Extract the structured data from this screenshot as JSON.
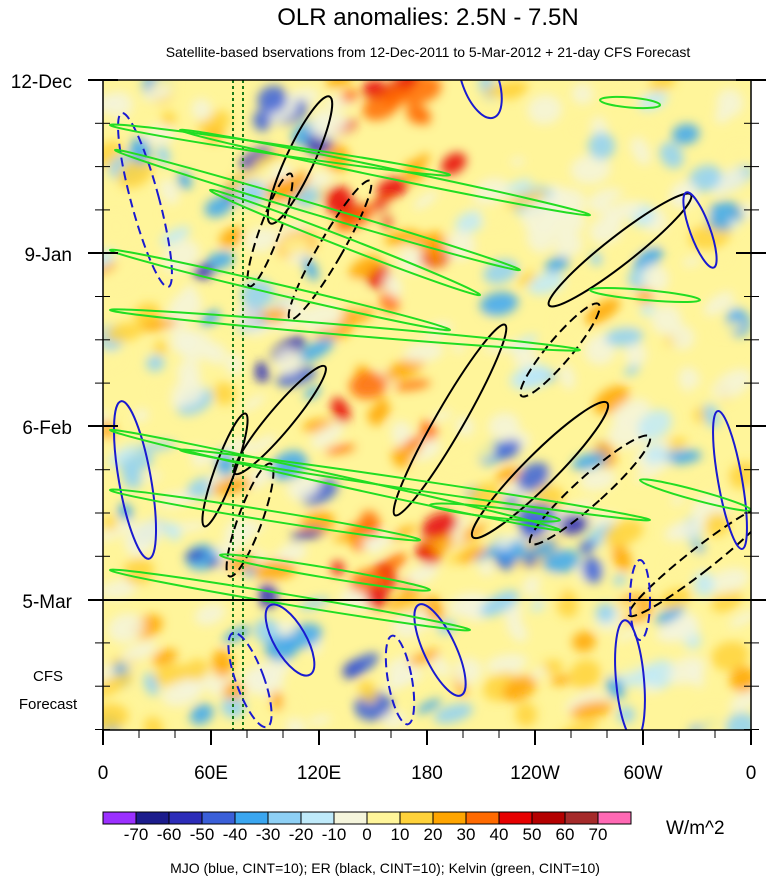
{
  "chart_data": {
    "type": "heatmap",
    "title": "OLR anomalies: 2.5N - 7.5N",
    "subtitle": "Satellite-based bservations from 12-Dec-2011 to 5-Mar-2012 + 21-day CFS Forecast",
    "y_tick_labels": [
      "12-Dec",
      "9-Jan",
      "6-Feb",
      "5-Mar"
    ],
    "forecast_label": [
      "CFS",
      "Forecast"
    ],
    "x_tick_labels": [
      "0",
      "60E",
      "120E",
      "180",
      "120W",
      "60W",
      "0"
    ],
    "xlim": [
      0,
      360
    ],
    "colorbar": {
      "labels": [
        "-70",
        "-60",
        "-50",
        "-40",
        "-30",
        "-20",
        "-10",
        "0",
        "10",
        "20",
        "30",
        "40",
        "50",
        "60",
        "70"
      ],
      "colors": [
        "#9b30ff",
        "#1c1c8c",
        "#2c2cb8",
        "#3a5fd8",
        "#3aa6f0",
        "#8ed0f5",
        "#bfeafa",
        "#f5f5dc",
        "#fff59a",
        "#ffd23a",
        "#ffa500",
        "#ff6a00",
        "#e60000",
        "#b40000",
        "#a52a2a",
        "#ff69b4"
      ],
      "units": "W/m^2"
    },
    "caption": "MJO (blue, CINT=10); ER (black, CINT=10); Kelvin (green, CINT=10)",
    "overlay_colors": {
      "mjo": "#1a1ad0",
      "er": "#000000",
      "kelvin": "#22dd22",
      "ref_line": "#1a7a1a"
    }
  }
}
